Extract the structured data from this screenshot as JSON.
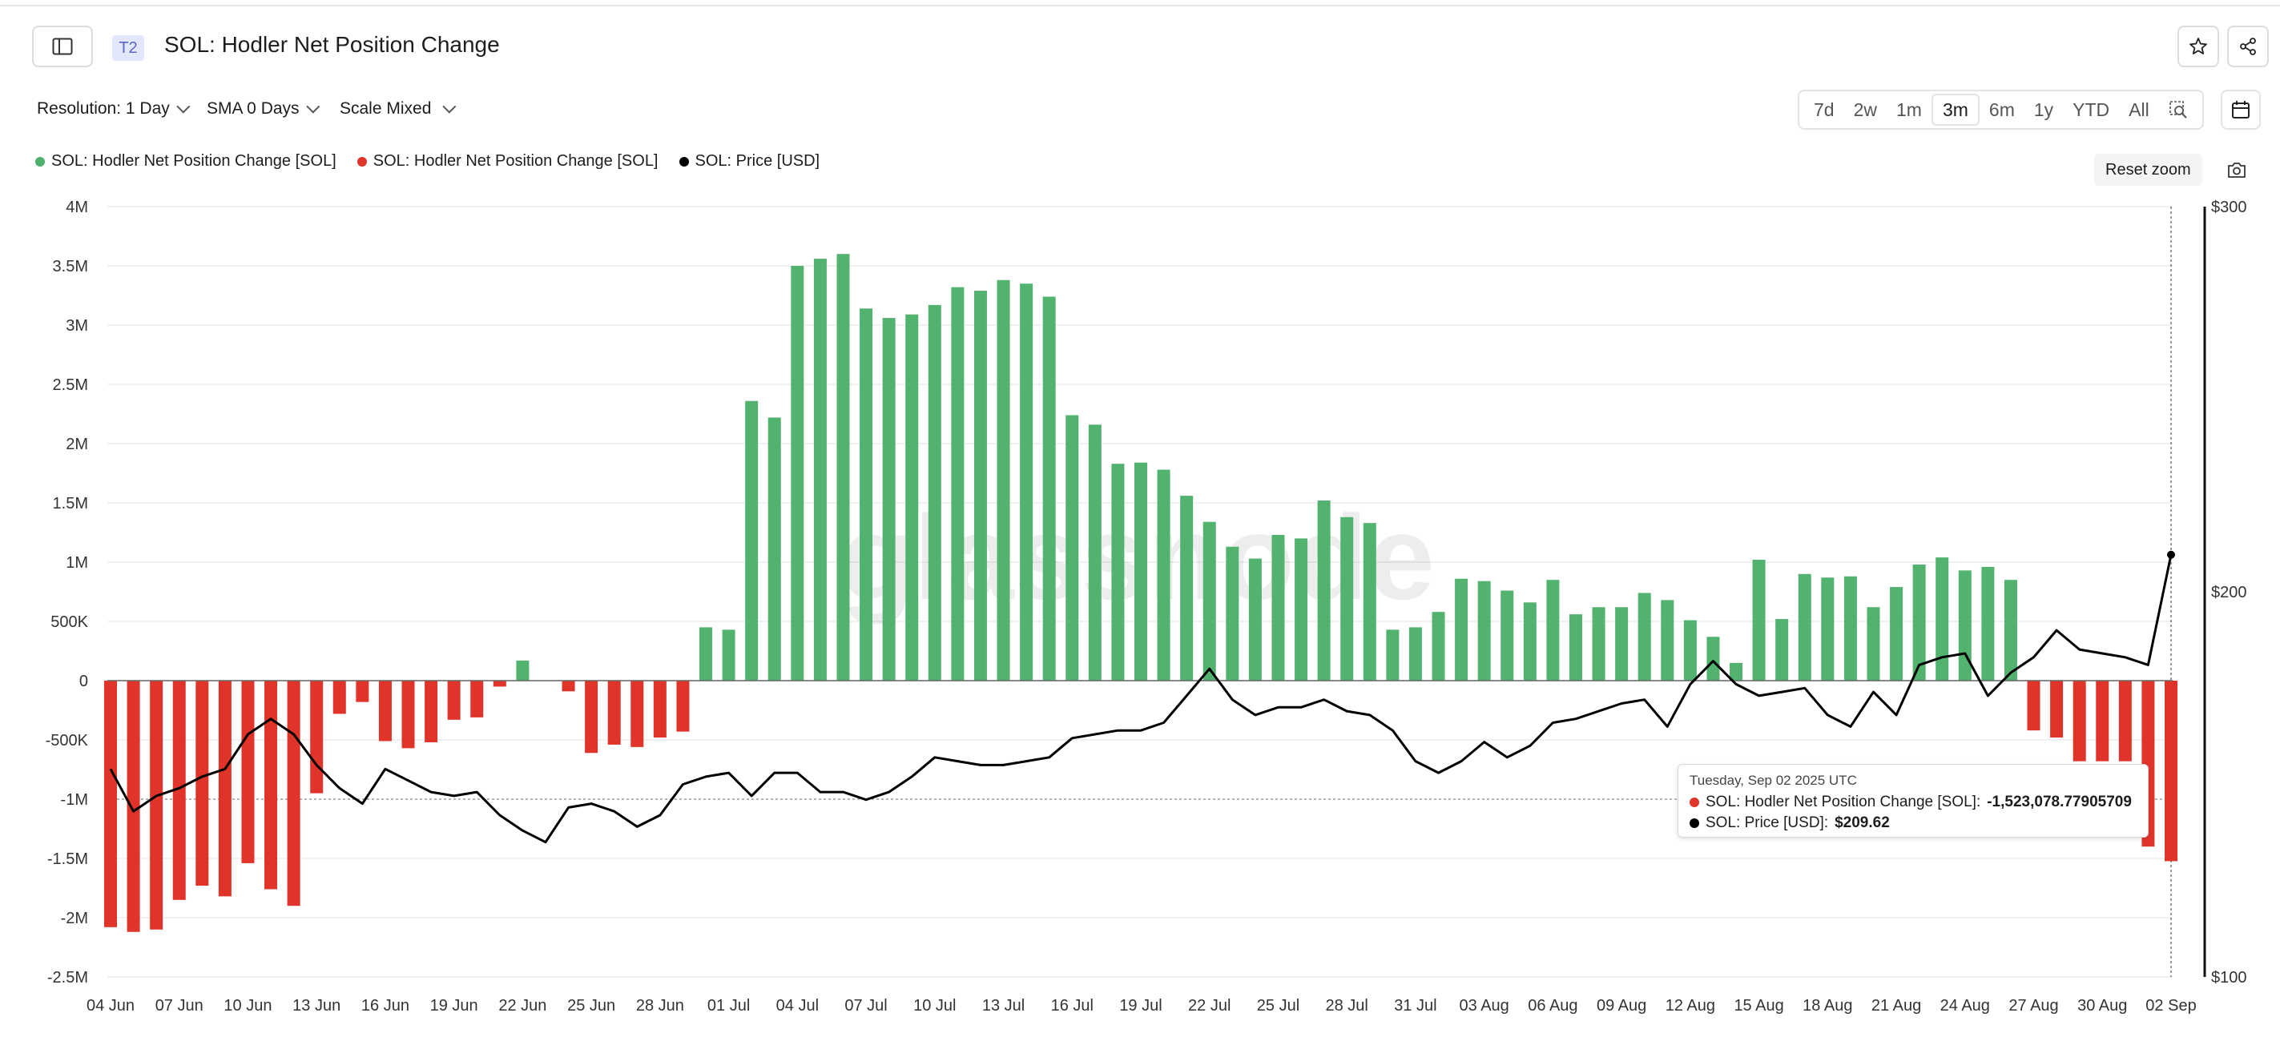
{
  "header": {
    "tag": "T2",
    "title": "SOL: Hodler Net Position Change"
  },
  "controls": {
    "resolution": "Resolution: 1 Day",
    "sma": "SMA 0 Days",
    "scale": "Scale Mixed"
  },
  "ranges": [
    "7d",
    "2w",
    "1m",
    "3m",
    "6m",
    "1y",
    "YTD",
    "All"
  ],
  "active_range": "3m",
  "reset_zoom": "Reset zoom",
  "watermark": "glassnode",
  "legend": [
    {
      "label": "SOL: Hodler Net Position Change [SOL]",
      "color": "#4caf6e"
    },
    {
      "label": "SOL: Hodler Net Position Change [SOL]",
      "color": "#e0342b"
    },
    {
      "label": "SOL: Price [USD]",
      "color": "#000000"
    }
  ],
  "tooltip": {
    "date": "Tuesday, Sep 02 2025 UTC",
    "row1_label": "SOL: Hodler Net Position Change [SOL]:",
    "row1_value": "-1,523,078.77905709",
    "row2_label": "SOL: Price [USD]:",
    "row2_value": "$209.62"
  },
  "colors": {
    "positive": "#52b36f",
    "negative": "#e0342b",
    "price": "#000000",
    "grid": "#ececec"
  },
  "chart_data": {
    "type": "bar",
    "x": [
      "04 Jun",
      "05 Jun",
      "06 Jun",
      "07 Jun",
      "08 Jun",
      "09 Jun",
      "10 Jun",
      "11 Jun",
      "12 Jun",
      "13 Jun",
      "14 Jun",
      "15 Jun",
      "16 Jun",
      "17 Jun",
      "18 Jun",
      "19 Jun",
      "20 Jun",
      "21 Jun",
      "22 Jun",
      "23 Jun",
      "24 Jun",
      "25 Jun",
      "26 Jun",
      "27 Jun",
      "28 Jun",
      "29 Jun",
      "30 Jun",
      "01 Jul",
      "02 Jul",
      "03 Jul",
      "04 Jul",
      "05 Jul",
      "06 Jul",
      "07 Jul",
      "08 Jul",
      "09 Jul",
      "10 Jul",
      "11 Jul",
      "12 Jul",
      "13 Jul",
      "14 Jul",
      "15 Jul",
      "16 Jul",
      "17 Jul",
      "18 Jul",
      "19 Jul",
      "20 Jul",
      "21 Jul",
      "22 Jul",
      "23 Jul",
      "24 Jul",
      "25 Jul",
      "26 Jul",
      "27 Jul",
      "28 Jul",
      "29 Jul",
      "30 Jul",
      "31 Jul",
      "01 Aug",
      "02 Aug",
      "03 Aug",
      "04 Aug",
      "05 Aug",
      "06 Aug",
      "07 Aug",
      "08 Aug",
      "09 Aug",
      "10 Aug",
      "11 Aug",
      "12 Aug",
      "13 Aug",
      "14 Aug",
      "15 Aug",
      "16 Aug",
      "17 Aug",
      "18 Aug",
      "19 Aug",
      "20 Aug",
      "21 Aug",
      "22 Aug",
      "23 Aug",
      "24 Aug",
      "25 Aug",
      "26 Aug",
      "27 Aug",
      "28 Aug",
      "29 Aug",
      "30 Aug",
      "31 Aug",
      "01 Sep",
      "02 Sep"
    ],
    "x_tick_labels": [
      "04 Jun",
      "07 Jun",
      "10 Jun",
      "13 Jun",
      "16 Jun",
      "19 Jun",
      "22 Jun",
      "25 Jun",
      "28 Jun",
      "01 Jul",
      "04 Jul",
      "07 Jul",
      "10 Jul",
      "13 Jul",
      "16 Jul",
      "19 Jul",
      "22 Jul",
      "25 Jul",
      "28 Jul",
      "31 Jul",
      "03 Aug",
      "06 Aug",
      "09 Aug",
      "12 Aug",
      "15 Aug",
      "18 Aug",
      "21 Aug",
      "24 Aug",
      "27 Aug",
      "30 Aug",
      "02 Sep"
    ],
    "series": [
      {
        "name": "SOL: Hodler Net Position Change [SOL]",
        "axis": "left",
        "values": [
          -2080000,
          -2120000,
          -2100000,
          -1850000,
          -1730000,
          -1820000,
          -1540000,
          -1760000,
          -1900000,
          -950000,
          -280000,
          -180000,
          -510000,
          -570000,
          -520000,
          -330000,
          -310000,
          -50000,
          170000,
          0,
          -90000,
          -610000,
          -540000,
          -560000,
          -480000,
          -430000,
          450000,
          430000,
          2360000,
          2220000,
          3500000,
          3560000,
          3600000,
          3140000,
          3060000,
          3090000,
          3170000,
          3320000,
          3290000,
          3380000,
          3350000,
          3240000,
          2240000,
          2160000,
          1830000,
          1840000,
          1780000,
          1560000,
          1340000,
          1130000,
          1030000,
          1230000,
          1200000,
          1520000,
          1380000,
          1330000,
          430000,
          450000,
          580000,
          860000,
          840000,
          760000,
          660000,
          850000,
          560000,
          620000,
          620000,
          740000,
          680000,
          510000,
          370000,
          150000,
          1020000,
          520000,
          900000,
          870000,
          880000,
          620000,
          790000,
          980000,
          1040000,
          930000,
          960000,
          850000,
          -420000,
          -480000,
          -680000,
          -680000,
          -680000,
          -1400000,
          -1523079
        ]
      },
      {
        "name": "SOL: Price [USD]",
        "axis": "right",
        "values": [
          154,
          143,
          147,
          149,
          152,
          154,
          163,
          167,
          163,
          155,
          149,
          145,
          154,
          151,
          148,
          147,
          148,
          142,
          138,
          135,
          144,
          145,
          143,
          139,
          142,
          150,
          152,
          153,
          147,
          153,
          153,
          148,
          148,
          146,
          148,
          152,
          157,
          156,
          155,
          155,
          156,
          157,
          162,
          163,
          164,
          164,
          166,
          173,
          180,
          172,
          168,
          170,
          170,
          172,
          169,
          168,
          164,
          156,
          153,
          156,
          161,
          157,
          160,
          166,
          167,
          169,
          171,
          172,
          165,
          176,
          182,
          176,
          173,
          174,
          175,
          168,
          165,
          174,
          168,
          181,
          183,
          184,
          173,
          179,
          183,
          190,
          185,
          184,
          183,
          181,
          209.62
        ]
      }
    ],
    "ylim_left": [
      -2500000,
      4000000
    ],
    "yticks_left": [
      "4M",
      "3.5M",
      "3M",
      "2.5M",
      "2M",
      "1.5M",
      "1M",
      "500K",
      "0",
      "-500K",
      "-1M",
      "-1.5M",
      "-2M",
      "-2.5M"
    ],
    "ylim_right": [
      100,
      300
    ],
    "yticks_right": [
      "$300",
      "$200",
      "$100"
    ]
  }
}
